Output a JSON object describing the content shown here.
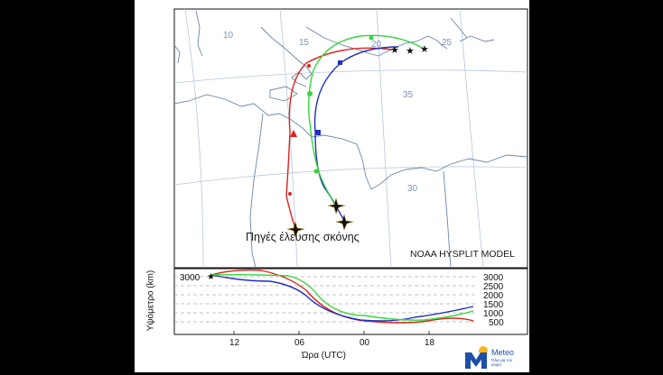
{
  "map": {
    "title": "Πηγές έλευσης σκόνης",
    "model": "NOAA HYSPLIT MODEL",
    "lon_labels": [
      "10",
      "15",
      "20",
      "25"
    ],
    "lat_labels": [
      "35",
      "30"
    ]
  },
  "altitude_panel": {
    "ylabel": "Υψόμετρο (km)",
    "xlabel": "Ώρα (UTC)",
    "start_level": "3000",
    "levels": [
      "3000",
      "2500",
      "2000",
      "1500",
      "1000",
      "500"
    ],
    "time_ticks": [
      "12",
      "06",
      "00",
      "18"
    ]
  },
  "colors": {
    "red": "#e0211b",
    "blue": "#1f2fc2",
    "green": "#35d63a",
    "grid": "#b7c7dd",
    "coast": "#6d86aa"
  },
  "logo": {
    "name": "Meteo",
    "tagline": "Όλα για τον καιρό",
    "icon": "meteo-m-sun-logo"
  }
}
